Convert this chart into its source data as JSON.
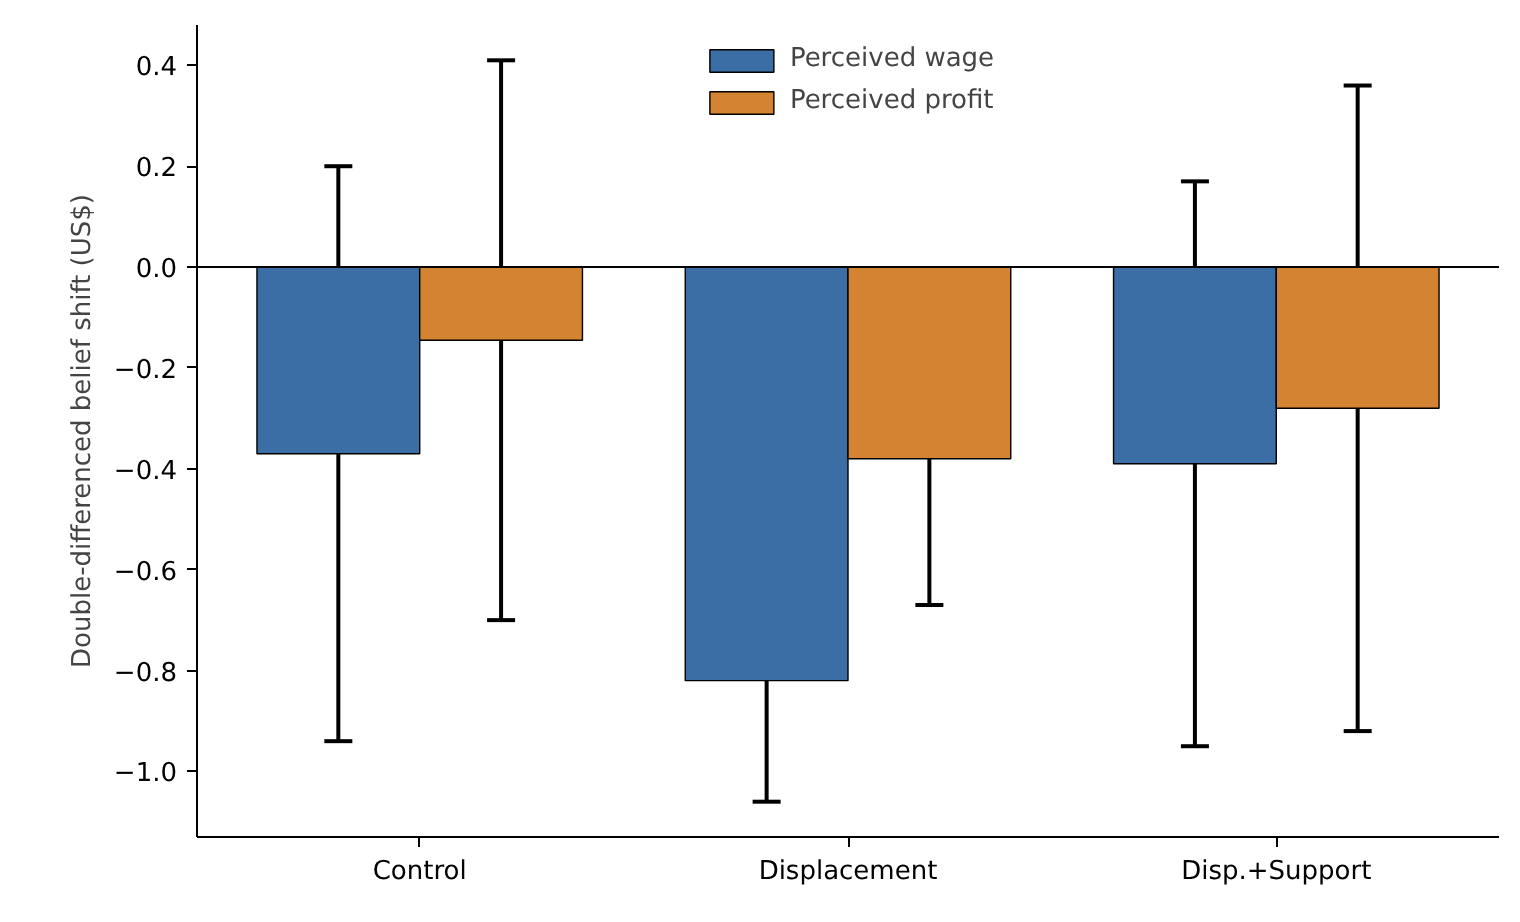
{
  "chart_data": {
    "type": "bar",
    "ylabel": "Double-differenced belief shift (US$)",
    "categories": [
      "Control",
      "Displacement",
      "Disp.+Support"
    ],
    "series": [
      {
        "name": "Perceived wage",
        "color": "#3a6ea5",
        "values": [
          -0.37,
          -0.82,
          -0.39
        ],
        "errors": [
          0.57,
          0.24,
          0.56
        ]
      },
      {
        "name": "Perceived profit",
        "color": "#d38332",
        "values": [
          -0.145,
          -0.38,
          -0.28
        ],
        "errors": [
          0.555,
          0.29,
          0.64
        ]
      }
    ],
    "ylim": [
      -1.13,
      0.48
    ],
    "yticks": [
      {
        "value": -1.0,
        "label": "−1.0"
      },
      {
        "value": -0.8,
        "label": "−0.8"
      },
      {
        "value": -0.6,
        "label": "−0.6"
      },
      {
        "value": -0.4,
        "label": "−0.4"
      },
      {
        "value": -0.2,
        "label": "−0.2"
      },
      {
        "value": 0.0,
        "label": "0.0"
      },
      {
        "value": 0.2,
        "label": "0.2"
      },
      {
        "value": 0.4,
        "label": "0.4"
      }
    ],
    "ref_lines": [
      {
        "axis": "y",
        "value": 0,
        "color": "#000000"
      }
    ],
    "legend": "top",
    "grid": false
  }
}
